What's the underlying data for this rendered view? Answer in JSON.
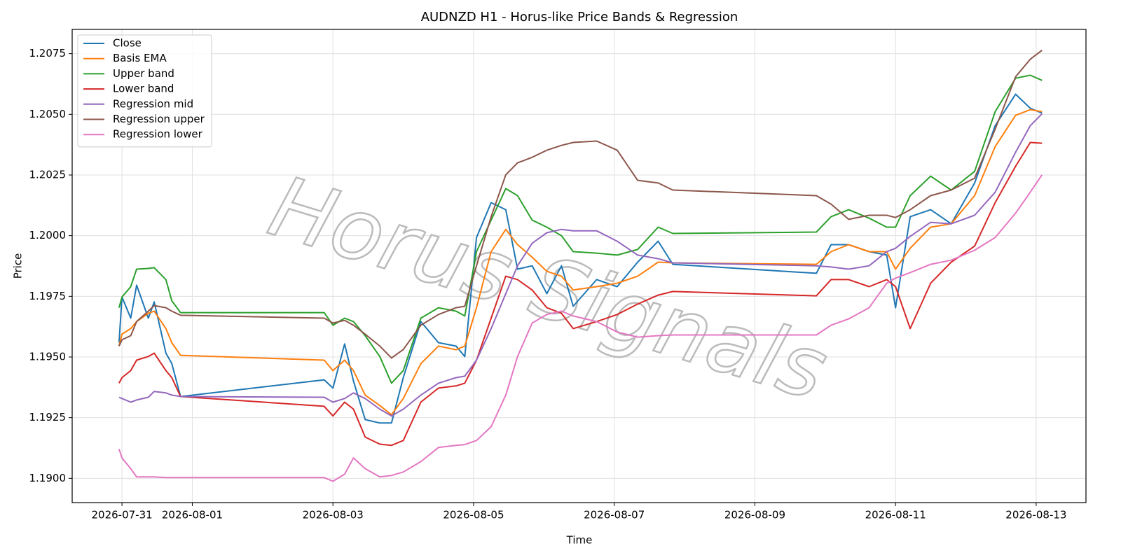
{
  "chart_data": {
    "type": "line",
    "title": "AUDNZD H1 - Horus-like Price Bands & Regression",
    "xlabel": "Time",
    "ylabel": "Price",
    "watermark": "Horus Signals",
    "grid": true,
    "legend": "upper left",
    "xlim": [
      "2026-07-30T07:00",
      "2026-08-13T17:00"
    ],
    "xticks": [
      "2026-07-31",
      "2026-08-01",
      "2026-08-03",
      "2026-08-05",
      "2026-08-07",
      "2026-08-09",
      "2026-08-11",
      "2026-08-13"
    ],
    "ylim": [
      1.189,
      1.2085
    ],
    "yticks": [
      {
        "value": 1.19,
        "label": "1.1900"
      },
      1.1925,
      {
        "value": 1.195,
        "label": "1.1950"
      },
      1.1975,
      {
        "value": 1.2,
        "label": "1.2000"
      },
      1.2025,
      {
        "value": 1.205,
        "label": "1.2050"
      },
      1.2075
    ],
    "x": [
      "2026-07-30T23:00",
      "2026-07-31T00:00",
      "2026-07-31T03:00",
      "2026-07-31T05:00",
      "2026-07-31T09:00",
      "2026-07-31T11:00",
      "2026-07-31T15:00",
      "2026-07-31T17:00",
      "2026-07-31T20:00",
      "2026-08-02T21:00",
      "2026-08-03T00:00",
      "2026-08-03T04:00",
      "2026-08-03T07:00",
      "2026-08-03T11:00",
      "2026-08-03T16:00",
      "2026-08-03T20:00",
      "2026-08-04T00:00",
      "2026-08-04T06:00",
      "2026-08-04T12:00",
      "2026-08-04T18:00",
      "2026-08-04T21:00",
      "2026-08-05T01:00",
      "2026-08-05T06:00",
      "2026-08-05T11:00",
      "2026-08-05T15:00",
      "2026-08-05T20:00",
      "2026-08-06T01:00",
      "2026-08-06T06:00",
      "2026-08-06T10:00",
      "2026-08-06T18:00",
      "2026-08-07T01:00",
      "2026-08-07T08:00",
      "2026-08-07T15:00",
      "2026-08-07T20:00",
      "2026-08-09T21:00",
      "2026-08-10T02:00",
      "2026-08-10T08:00",
      "2026-08-10T15:00",
      "2026-08-10T21:00",
      "2026-08-11T00:00",
      "2026-08-11T05:00",
      "2026-08-11T12:00",
      "2026-08-11T19:00",
      "2026-08-12T03:00",
      "2026-08-12T10:00",
      "2026-08-12T17:00",
      "2026-08-12T22:00",
      "2026-08-13T02:00"
    ],
    "series": [
      {
        "name": "Close",
        "color": "#1f77b4",
        "values": [
          1.19559,
          1.19747,
          1.1966,
          1.19796,
          1.1966,
          1.19727,
          1.19516,
          1.19473,
          1.19337,
          1.19406,
          1.19372,
          1.19554,
          1.19401,
          1.19242,
          1.19228,
          1.19228,
          1.19415,
          1.19646,
          1.19559,
          1.19545,
          1.19502,
          1.19992,
          1.20136,
          1.20107,
          1.19862,
          1.19876,
          1.19761,
          1.19876,
          1.19709,
          1.19819,
          1.1979,
          1.19891,
          1.19977,
          1.19882,
          1.19845,
          1.19963,
          1.19963,
          1.19934,
          1.1992,
          1.19703,
          1.20078,
          1.20107,
          1.20049,
          1.20217,
          1.20453,
          1.20583,
          1.20525,
          1.20505
        ]
      },
      {
        "name": "Basis EMA",
        "color": "#ff7f0e",
        "values": [
          1.19545,
          1.19594,
          1.19617,
          1.19646,
          1.1968,
          1.19689,
          1.19617,
          1.19559,
          1.19507,
          1.19487,
          1.19444,
          1.19487,
          1.19444,
          1.19343,
          1.193,
          1.19262,
          1.19329,
          1.19473,
          1.19545,
          1.1953,
          1.19545,
          1.19703,
          1.19934,
          1.20026,
          1.19963,
          1.19911,
          1.19853,
          1.19833,
          1.19776,
          1.1979,
          1.19804,
          1.19833,
          1.19891,
          1.19888,
          1.19882,
          1.19934,
          1.19963,
          1.19934,
          1.19934,
          1.19862,
          1.19948,
          1.20035,
          1.20049,
          1.20165,
          1.20367,
          1.20496,
          1.20519,
          1.20511
        ]
      },
      {
        "name": "Upper band",
        "color": "#2ca02c",
        "values": [
          1.19703,
          1.19747,
          1.1979,
          1.19862,
          1.19865,
          1.19868,
          1.19819,
          1.19732,
          1.19683,
          1.19683,
          1.19631,
          1.1966,
          1.19646,
          1.19588,
          1.19502,
          1.19392,
          1.19444,
          1.1966,
          1.19703,
          1.19689,
          1.19669,
          1.19934,
          1.20064,
          1.20194,
          1.20165,
          1.20064,
          1.20035,
          1.2,
          1.19934,
          1.19928,
          1.1992,
          1.19943,
          1.20035,
          1.20009,
          1.20015,
          1.20078,
          1.20107,
          1.20072,
          1.20035,
          1.20035,
          1.20165,
          1.20245,
          1.20188,
          1.20265,
          1.20511,
          1.20649,
          1.20661,
          1.2064
        ]
      },
      {
        "name": "Lower band",
        "color": "#d62728",
        "values": [
          1.19392,
          1.19415,
          1.19444,
          1.19487,
          1.19502,
          1.19516,
          1.19444,
          1.19415,
          1.19337,
          1.19297,
          1.19257,
          1.19314,
          1.19285,
          1.1917,
          1.19141,
          1.19136,
          1.19156,
          1.19314,
          1.19372,
          1.19381,
          1.19392,
          1.19487,
          1.1966,
          1.19833,
          1.19819,
          1.19776,
          1.19703,
          1.1968,
          1.19617,
          1.19646,
          1.19675,
          1.19718,
          1.19755,
          1.1977,
          1.19752,
          1.19819,
          1.19819,
          1.1979,
          1.19819,
          1.1979,
          1.19617,
          1.19804,
          1.19891,
          1.19957,
          1.20136,
          1.20286,
          1.20384,
          1.20381
        ]
      },
      {
        "name": "Regression mid",
        "color": "#9467bd",
        "values": [
          1.19334,
          1.19329,
          1.19314,
          1.19323,
          1.19334,
          1.19358,
          1.19352,
          1.19343,
          1.19337,
          1.19334,
          1.19314,
          1.19329,
          1.19352,
          1.19329,
          1.19285,
          1.19257,
          1.19285,
          1.19343,
          1.19392,
          1.19415,
          1.19421,
          1.19487,
          1.19617,
          1.19761,
          1.19876,
          1.19969,
          1.20012,
          1.20026,
          1.2002,
          1.2002,
          1.19977,
          1.1992,
          1.19905,
          1.19888,
          1.19876,
          1.19871,
          1.19862,
          1.19876,
          1.19934,
          1.19948,
          1.19997,
          1.20055,
          1.20049,
          1.20084,
          1.20179,
          1.20344,
          1.20453,
          1.20502
        ]
      },
      {
        "name": "Regression upper",
        "color": "#8c564b",
        "values": [
          1.19545,
          1.19571,
          1.19588,
          1.19646,
          1.19689,
          1.19712,
          1.19703,
          1.19689,
          1.19672,
          1.1966,
          1.1964,
          1.19651,
          1.19631,
          1.19594,
          1.19545,
          1.19496,
          1.19531,
          1.19631,
          1.19675,
          1.19703,
          1.19709,
          1.19876,
          1.20078,
          1.20251,
          1.203,
          1.20323,
          1.20352,
          1.20372,
          1.20384,
          1.2039,
          1.20352,
          1.20228,
          1.20217,
          1.20188,
          1.20165,
          1.2013,
          1.20067,
          1.20084,
          1.20084,
          1.20075,
          1.20107,
          1.20165,
          1.20188,
          1.20237,
          1.20439,
          1.20655,
          1.20727,
          1.20764
        ]
      },
      {
        "name": "Regression lower",
        "color": "#e377c2",
        "values": [
          1.19121,
          1.19084,
          1.1904,
          1.19006,
          1.19006,
          1.19006,
          1.19003,
          1.19003,
          1.19003,
          1.19003,
          1.18988,
          1.19017,
          1.19084,
          1.1904,
          1.19006,
          1.19012,
          1.19026,
          1.19069,
          1.19127,
          1.19136,
          1.19139,
          1.19156,
          1.19213,
          1.19343,
          1.19502,
          1.1964,
          1.19675,
          1.19689,
          1.19669,
          1.19646,
          1.19603,
          1.19582,
          1.19588,
          1.19591,
          1.19591,
          1.19631,
          1.19657,
          1.19703,
          1.19804,
          1.19825,
          1.19848,
          1.19882,
          1.19899,
          1.1994,
          1.19992,
          1.20093,
          1.20179,
          1.20251
        ]
      }
    ]
  }
}
